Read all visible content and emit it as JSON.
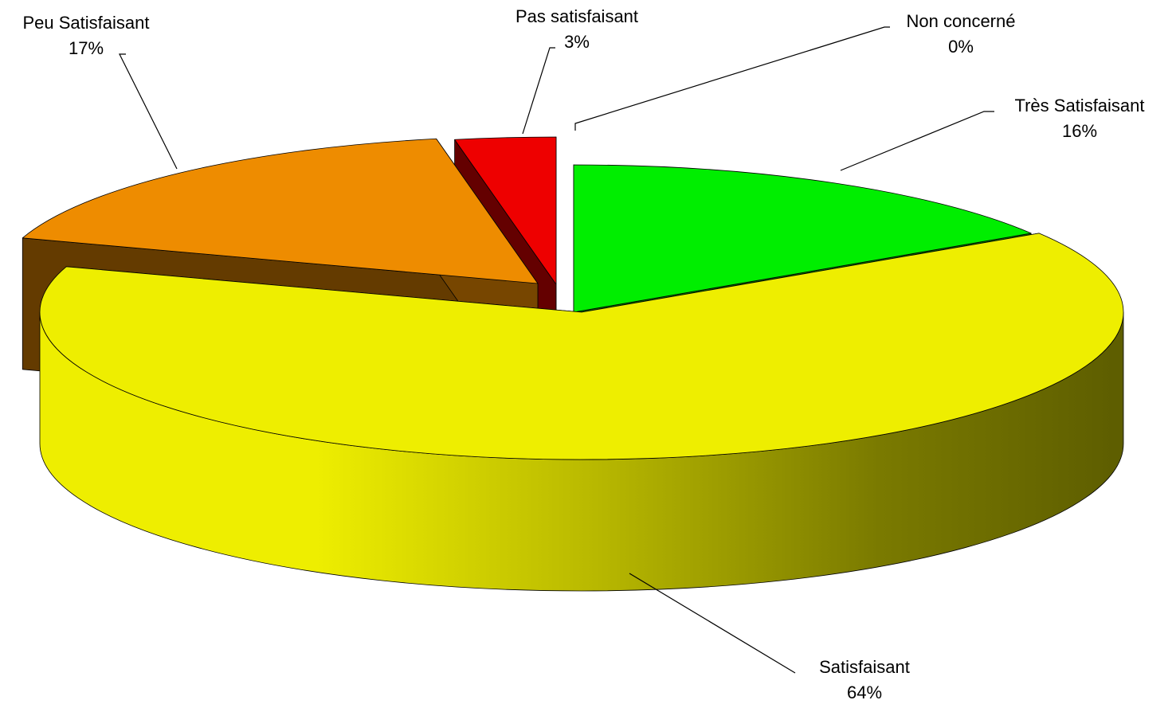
{
  "chart_data": {
    "type": "pie",
    "title": "",
    "three_d": true,
    "exploded": true,
    "legend": "none",
    "slices": [
      {
        "label": "Très Satisfaisant",
        "value": 16,
        "value_label": "16%",
        "color": "#00ee00"
      },
      {
        "label": "Satisfaisant",
        "value": 64,
        "value_label": "64%",
        "color": "#eeee00"
      },
      {
        "label": "Peu Satisfaisant",
        "value": 17,
        "value_label": "17%",
        "color": "#ee8c00"
      },
      {
        "label": "Pas satisfaisant",
        "value": 3,
        "value_label": "3%",
        "color": "#ee0000"
      },
      {
        "label": "Non concerné",
        "value": 0,
        "value_label": "0%",
        "color": "#ffffff"
      }
    ]
  }
}
